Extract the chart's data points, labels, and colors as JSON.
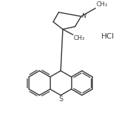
{
  "bg_color": "#ffffff",
  "line_color": "#3a3a3a",
  "text_color": "#3a3a3a",
  "line_width": 1.1,
  "figsize": [
    1.93,
    1.7
  ],
  "dpi": 100,
  "HCl_text": "HCl",
  "CH3_top": "CH₃",
  "CH3_mid": "CH₃",
  "N_label": "N",
  "S_label": "S"
}
